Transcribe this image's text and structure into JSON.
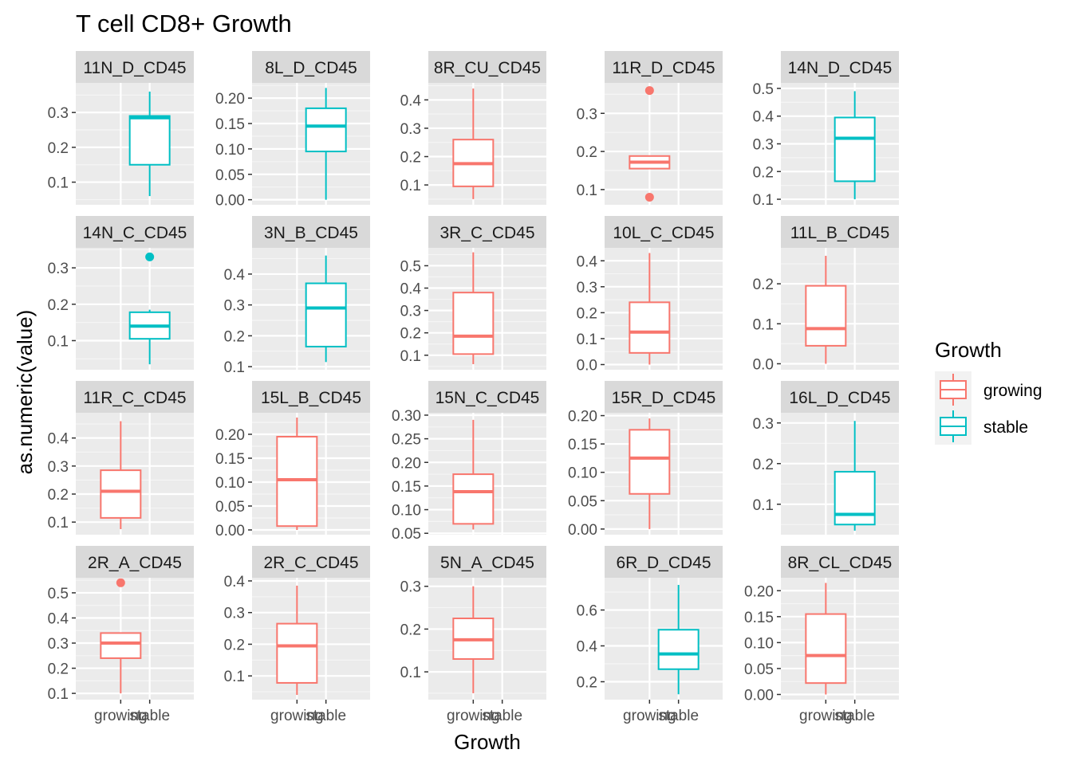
{
  "chart_data": {
    "type": "boxplot",
    "title": "T cell CD8+ Growth",
    "xlabel": "Growth",
    "ylabel": "as.numeric(value)",
    "categories": [
      "growing",
      "stable"
    ],
    "legend": {
      "title": "Growth",
      "position": "right",
      "items": [
        {
          "label": "growing",
          "color": "#F8766D"
        },
        {
          "label": "stable",
          "color": "#00BFC4"
        }
      ]
    },
    "facet_scales": "free_y",
    "grid": true,
    "panels": [
      {
        "label": "11N_D_CD45",
        "ylim": [
          0.035,
          0.385
        ],
        "yticks": [
          0.1,
          0.2,
          0.3
        ],
        "tick_labels": [
          "0.1",
          "0.2",
          "0.3"
        ],
        "boxes": [
          {
            "group": "stable",
            "min": 0.06,
            "q1": 0.15,
            "median": 0.285,
            "q3": 0.29,
            "max": 0.36,
            "outliers": []
          }
        ]
      },
      {
        "label": "8L_D_CD45",
        "ylim": [
          -0.01,
          0.23
        ],
        "yticks": [
          0.0,
          0.05,
          0.1,
          0.15,
          0.2
        ],
        "tick_labels": [
          "0.00",
          "0.05",
          "0.10",
          "0.15",
          "0.20"
        ],
        "boxes": [
          {
            "group": "stable",
            "min": 0.0,
            "q1": 0.095,
            "median": 0.145,
            "q3": 0.18,
            "max": 0.22,
            "outliers": []
          }
        ]
      },
      {
        "label": "8R_CU_CD45",
        "ylim": [
          0.03,
          0.46
        ],
        "yticks": [
          0.1,
          0.2,
          0.3,
          0.4
        ],
        "tick_labels": [
          "0.1",
          "0.2",
          "0.3",
          "0.4"
        ],
        "boxes": [
          {
            "group": "growing",
            "min": 0.05,
            "q1": 0.095,
            "median": 0.175,
            "q3": 0.26,
            "max": 0.44,
            "outliers": []
          }
        ]
      },
      {
        "label": "11R_D_CD45",
        "ylim": [
          0.06,
          0.38
        ],
        "yticks": [
          0.1,
          0.2,
          0.3
        ],
        "tick_labels": [
          "0.1",
          "0.2",
          "0.3"
        ],
        "boxes": [
          {
            "group": "growing",
            "min": 0.155,
            "q1": 0.155,
            "median": 0.172,
            "q3": 0.188,
            "max": 0.188,
            "outliers": [
              0.08,
              0.36
            ]
          }
        ]
      },
      {
        "label": "14N_D_CD45",
        "ylim": [
          0.08,
          0.52
        ],
        "yticks": [
          0.1,
          0.2,
          0.3,
          0.4,
          0.5
        ],
        "tick_labels": [
          "0.1",
          "0.2",
          "0.3",
          "0.4",
          "0.5"
        ],
        "boxes": [
          {
            "group": "stable",
            "min": 0.1,
            "q1": 0.165,
            "median": 0.32,
            "q3": 0.395,
            "max": 0.49,
            "outliers": []
          }
        ]
      },
      {
        "label": "14N_C_CD45",
        "ylim": [
          0.02,
          0.355
        ],
        "yticks": [
          0.1,
          0.2,
          0.3
        ],
        "tick_labels": [
          "0.1",
          "0.2",
          "0.3"
        ],
        "boxes": [
          {
            "group": "stable",
            "min": 0.035,
            "q1": 0.105,
            "median": 0.14,
            "q3": 0.178,
            "max": 0.185,
            "outliers": [
              0.33
            ]
          }
        ]
      },
      {
        "label": "3N_B_CD45",
        "ylim": [
          0.09,
          0.485
        ],
        "yticks": [
          0.1,
          0.2,
          0.3,
          0.4
        ],
        "tick_labels": [
          "0.1",
          "0.2",
          "0.3",
          "0.4"
        ],
        "boxes": [
          {
            "group": "stable",
            "min": 0.115,
            "q1": 0.165,
            "median": 0.29,
            "q3": 0.37,
            "max": 0.46,
            "outliers": []
          }
        ]
      },
      {
        "label": "3R_C_CD45",
        "ylim": [
          0.035,
          0.58
        ],
        "yticks": [
          0.1,
          0.2,
          0.3,
          0.4,
          0.5
        ],
        "tick_labels": [
          "0.1",
          "0.2",
          "0.3",
          "0.4",
          "0.5"
        ],
        "boxes": [
          {
            "group": "growing",
            "min": 0.06,
            "q1": 0.105,
            "median": 0.185,
            "q3": 0.38,
            "max": 0.56,
            "outliers": []
          }
        ]
      },
      {
        "label": "10L_C_CD45",
        "ylim": [
          -0.02,
          0.45
        ],
        "yticks": [
          0.0,
          0.1,
          0.2,
          0.3,
          0.4
        ],
        "tick_labels": [
          "0.0",
          "0.1",
          "0.2",
          "0.3",
          "0.4"
        ],
        "boxes": [
          {
            "group": "growing",
            "min": 0.0,
            "q1": 0.045,
            "median": 0.125,
            "q3": 0.24,
            "max": 0.43,
            "outliers": []
          }
        ]
      },
      {
        "label": "11L_B_CD45",
        "ylim": [
          -0.015,
          0.29
        ],
        "yticks": [
          0.0,
          0.1,
          0.2
        ],
        "tick_labels": [
          "0.0",
          "0.1",
          "0.2"
        ],
        "boxes": [
          {
            "group": "growing",
            "min": 0.0,
            "q1": 0.045,
            "median": 0.088,
            "q3": 0.195,
            "max": 0.27,
            "outliers": []
          }
        ]
      },
      {
        "label": "11R_C_CD45",
        "ylim": [
          0.055,
          0.49
        ],
        "yticks": [
          0.1,
          0.2,
          0.3,
          0.4
        ],
        "tick_labels": [
          "0.1",
          "0.2",
          "0.3",
          "0.4"
        ],
        "boxes": [
          {
            "group": "growing",
            "min": 0.075,
            "q1": 0.115,
            "median": 0.21,
            "q3": 0.285,
            "max": 0.46,
            "outliers": []
          }
        ]
      },
      {
        "label": "15L_B_CD45",
        "ylim": [
          -0.01,
          0.245
        ],
        "yticks": [
          0.0,
          0.05,
          0.1,
          0.15,
          0.2
        ],
        "tick_labels": [
          "0.00",
          "0.05",
          "0.10",
          "0.15",
          "0.20"
        ],
        "boxes": [
          {
            "group": "growing",
            "min": 0.0,
            "q1": 0.008,
            "median": 0.105,
            "q3": 0.195,
            "max": 0.235,
            "outliers": []
          }
        ]
      },
      {
        "label": "15N_C_CD45",
        "ylim": [
          0.047,
          0.305
        ],
        "yticks": [
          0.05,
          0.1,
          0.15,
          0.2,
          0.25,
          0.3
        ],
        "tick_labels": [
          "0.05",
          "0.10",
          "0.15",
          "0.20",
          "0.25",
          "0.30"
        ],
        "boxes": [
          {
            "group": "growing",
            "min": 0.058,
            "q1": 0.07,
            "median": 0.138,
            "q3": 0.175,
            "max": 0.29,
            "outliers": []
          }
        ]
      },
      {
        "label": "15R_D_CD45",
        "ylim": [
          -0.01,
          0.205
        ],
        "yticks": [
          0.0,
          0.05,
          0.1,
          0.15,
          0.2
        ],
        "tick_labels": [
          "0.00",
          "0.05",
          "0.10",
          "0.15",
          "0.20"
        ],
        "boxes": [
          {
            "group": "growing",
            "min": 0.0,
            "q1": 0.062,
            "median": 0.125,
            "q3": 0.175,
            "max": 0.195,
            "outliers": []
          }
        ]
      },
      {
        "label": "16L_D_CD45",
        "ylim": [
          0.025,
          0.325
        ],
        "yticks": [
          0.1,
          0.2,
          0.3
        ],
        "tick_labels": [
          "0.1",
          "0.2",
          "0.3"
        ],
        "boxes": [
          {
            "group": "stable",
            "min": 0.035,
            "q1": 0.05,
            "median": 0.075,
            "q3": 0.18,
            "max": 0.305,
            "outliers": []
          }
        ]
      },
      {
        "label": "2R_A_CD45",
        "ylim": [
          0.075,
          0.56
        ],
        "yticks": [
          0.1,
          0.2,
          0.3,
          0.4,
          0.5
        ],
        "tick_labels": [
          "0.1",
          "0.2",
          "0.3",
          "0.4",
          "0.5"
        ],
        "boxes": [
          {
            "group": "growing",
            "min": 0.1,
            "q1": 0.24,
            "median": 0.3,
            "q3": 0.34,
            "max": 0.34,
            "outliers": [
              0.54
            ]
          }
        ]
      },
      {
        "label": "2R_C_CD45",
        "ylim": [
          0.025,
          0.41
        ],
        "yticks": [
          0.1,
          0.2,
          0.3,
          0.4
        ],
        "tick_labels": [
          "0.1",
          "0.2",
          "0.3",
          "0.4"
        ],
        "boxes": [
          {
            "group": "growing",
            "min": 0.04,
            "q1": 0.078,
            "median": 0.195,
            "q3": 0.265,
            "max": 0.385,
            "outliers": []
          }
        ]
      },
      {
        "label": "5N_A_CD45",
        "ylim": [
          0.035,
          0.32
        ],
        "yticks": [
          0.1,
          0.2,
          0.3
        ],
        "tick_labels": [
          "0.1",
          "0.2",
          "0.3"
        ],
        "boxes": [
          {
            "group": "growing",
            "min": 0.05,
            "q1": 0.13,
            "median": 0.175,
            "q3": 0.225,
            "max": 0.3,
            "outliers": []
          }
        ]
      },
      {
        "label": "6R_D_CD45",
        "ylim": [
          0.1,
          0.78
        ],
        "yticks": [
          0.2,
          0.4,
          0.6
        ],
        "tick_labels": [
          "0.2",
          "0.4",
          "0.6"
        ],
        "boxes": [
          {
            "group": "stable",
            "min": 0.13,
            "q1": 0.27,
            "median": 0.355,
            "q3": 0.49,
            "max": 0.74,
            "outliers": []
          }
        ]
      },
      {
        "label": "8R_CL_CD45",
        "ylim": [
          -0.01,
          0.225
        ],
        "yticks": [
          0.0,
          0.05,
          0.1,
          0.15,
          0.2
        ],
        "tick_labels": [
          "0.00",
          "0.05",
          "0.10",
          "0.15",
          "0.20"
        ],
        "boxes": [
          {
            "group": "growing",
            "min": 0.0,
            "q1": 0.022,
            "median": 0.075,
            "q3": 0.155,
            "max": 0.215,
            "outliers": []
          }
        ]
      }
    ]
  }
}
